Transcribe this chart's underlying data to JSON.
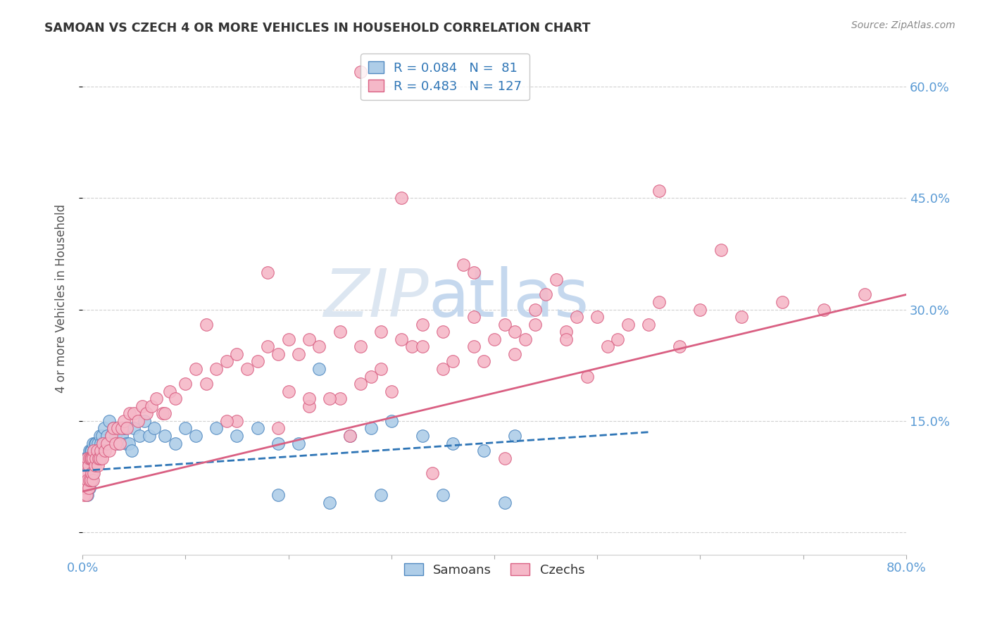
{
  "title": "SAMOAN VS CZECH 4 OR MORE VEHICLES IN HOUSEHOLD CORRELATION CHART",
  "source": "Source: ZipAtlas.com",
  "ylabel": "4 or more Vehicles in Household",
  "xlabel": "",
  "xlim": [
    0.0,
    0.8
  ],
  "ylim": [
    -0.03,
    0.66
  ],
  "xticks": [
    0.0,
    0.1,
    0.2,
    0.3,
    0.4,
    0.5,
    0.6,
    0.7,
    0.8
  ],
  "xticklabels": [
    "0.0%",
    "",
    "",
    "",
    "",
    "",
    "",
    "",
    "80.0%"
  ],
  "yticks": [
    0.0,
    0.15,
    0.3,
    0.45,
    0.6
  ],
  "yticklabels": [
    "",
    "15.0%",
    "30.0%",
    "45.0%",
    "60.0%"
  ],
  "right_ytick_color": "#5b9bd5",
  "grid_color": "#d0d0d0",
  "background_color": "#ffffff",
  "watermark_zip": "ZIP",
  "watermark_atlas": "atlas",
  "watermark_color_zip": "#dce6f1",
  "watermark_color_atlas": "#c5d8ee",
  "samoans": {
    "color": "#aecde8",
    "edge_color": "#4f88c0",
    "R": 0.084,
    "N": 81,
    "line_color": "#2e75b6",
    "line_style": "--",
    "label": "Samoans"
  },
  "czechs": {
    "color": "#f5b8c8",
    "edge_color": "#d95f82",
    "R": 0.483,
    "N": 127,
    "line_color": "#d95f82",
    "line_style": "-",
    "label": "Czechs"
  },
  "legend": {
    "text_color": "#2e75b6",
    "border_color": "#bbbbbb"
  },
  "samoan_line": [
    0.0,
    0.55,
    0.083,
    0.135
  ],
  "czech_line": [
    0.0,
    0.8,
    0.055,
    0.32
  ],
  "samoan_points_x": [
    0.001,
    0.002,
    0.002,
    0.003,
    0.003,
    0.004,
    0.004,
    0.004,
    0.005,
    0.005,
    0.005,
    0.006,
    0.006,
    0.006,
    0.007,
    0.007,
    0.007,
    0.007,
    0.008,
    0.008,
    0.008,
    0.009,
    0.009,
    0.009,
    0.01,
    0.01,
    0.01,
    0.011,
    0.011,
    0.012,
    0.012,
    0.013,
    0.013,
    0.014,
    0.015,
    0.015,
    0.016,
    0.017,
    0.018,
    0.019,
    0.02,
    0.021,
    0.022,
    0.024,
    0.026,
    0.028,
    0.03,
    0.032,
    0.035,
    0.038,
    0.04,
    0.042,
    0.045,
    0.048,
    0.05,
    0.055,
    0.06,
    0.065,
    0.07,
    0.08,
    0.09,
    0.1,
    0.11,
    0.13,
    0.15,
    0.17,
    0.19,
    0.21,
    0.23,
    0.26,
    0.28,
    0.3,
    0.33,
    0.36,
    0.39,
    0.42,
    0.19,
    0.24,
    0.29,
    0.35,
    0.41
  ],
  "samoan_points_y": [
    0.07,
    0.07,
    0.09,
    0.08,
    0.1,
    0.06,
    0.08,
    0.1,
    0.05,
    0.07,
    0.09,
    0.06,
    0.08,
    0.1,
    0.06,
    0.08,
    0.09,
    0.11,
    0.07,
    0.09,
    0.11,
    0.07,
    0.09,
    0.11,
    0.08,
    0.1,
    0.12,
    0.09,
    0.11,
    0.1,
    0.12,
    0.1,
    0.12,
    0.11,
    0.1,
    0.12,
    0.11,
    0.13,
    0.12,
    0.13,
    0.12,
    0.14,
    0.12,
    0.13,
    0.15,
    0.13,
    0.14,
    0.13,
    0.12,
    0.13,
    0.14,
    0.12,
    0.12,
    0.11,
    0.14,
    0.13,
    0.15,
    0.13,
    0.14,
    0.13,
    0.12,
    0.14,
    0.13,
    0.14,
    0.13,
    0.14,
    0.12,
    0.12,
    0.22,
    0.13,
    0.14,
    0.15,
    0.13,
    0.12,
    0.11,
    0.13,
    0.05,
    0.04,
    0.05,
    0.05,
    0.04
  ],
  "czech_points_x": [
    0.001,
    0.002,
    0.002,
    0.003,
    0.003,
    0.004,
    0.004,
    0.005,
    0.005,
    0.006,
    0.006,
    0.007,
    0.007,
    0.008,
    0.008,
    0.009,
    0.009,
    0.01,
    0.01,
    0.011,
    0.011,
    0.012,
    0.013,
    0.014,
    0.015,
    0.016,
    0.017,
    0.018,
    0.019,
    0.02,
    0.022,
    0.024,
    0.026,
    0.028,
    0.03,
    0.032,
    0.034,
    0.036,
    0.038,
    0.04,
    0.043,
    0.046,
    0.05,
    0.054,
    0.058,
    0.062,
    0.067,
    0.072,
    0.078,
    0.085,
    0.09,
    0.1,
    0.11,
    0.12,
    0.13,
    0.14,
    0.15,
    0.16,
    0.17,
    0.18,
    0.19,
    0.2,
    0.21,
    0.22,
    0.23,
    0.25,
    0.27,
    0.29,
    0.31,
    0.33,
    0.35,
    0.38,
    0.41,
    0.44,
    0.47,
    0.5,
    0.53,
    0.56,
    0.6,
    0.64,
    0.68,
    0.72,
    0.76,
    0.3,
    0.38,
    0.25,
    0.18,
    0.12,
    0.08,
    0.28,
    0.35,
    0.42,
    0.47,
    0.32,
    0.22,
    0.15,
    0.4,
    0.33,
    0.27,
    0.2,
    0.14,
    0.55,
    0.48,
    0.58,
    0.45,
    0.52,
    0.38,
    0.62,
    0.44,
    0.36,
    0.29,
    0.24,
    0.19,
    0.42,
    0.37,
    0.31,
    0.26,
    0.49,
    0.43,
    0.56,
    0.34,
    0.27,
    0.41,
    0.51,
    0.46,
    0.39,
    0.22
  ],
  "czech_points_y": [
    0.05,
    0.06,
    0.08,
    0.06,
    0.09,
    0.05,
    0.08,
    0.07,
    0.1,
    0.06,
    0.09,
    0.07,
    0.1,
    0.07,
    0.1,
    0.08,
    0.1,
    0.07,
    0.1,
    0.08,
    0.11,
    0.09,
    0.1,
    0.11,
    0.09,
    0.1,
    0.1,
    0.11,
    0.1,
    0.12,
    0.11,
    0.12,
    0.11,
    0.13,
    0.14,
    0.12,
    0.14,
    0.12,
    0.14,
    0.15,
    0.14,
    0.16,
    0.16,
    0.15,
    0.17,
    0.16,
    0.17,
    0.18,
    0.16,
    0.19,
    0.18,
    0.2,
    0.22,
    0.2,
    0.22,
    0.23,
    0.24,
    0.22,
    0.23,
    0.25,
    0.24,
    0.26,
    0.24,
    0.26,
    0.25,
    0.27,
    0.25,
    0.27,
    0.26,
    0.28,
    0.27,
    0.29,
    0.28,
    0.3,
    0.27,
    0.29,
    0.28,
    0.31,
    0.3,
    0.29,
    0.31,
    0.3,
    0.32,
    0.19,
    0.25,
    0.18,
    0.35,
    0.28,
    0.16,
    0.21,
    0.22,
    0.24,
    0.26,
    0.25,
    0.17,
    0.15,
    0.26,
    0.25,
    0.2,
    0.19,
    0.15,
    0.28,
    0.29,
    0.25,
    0.32,
    0.26,
    0.35,
    0.38,
    0.28,
    0.23,
    0.22,
    0.18,
    0.14,
    0.27,
    0.36,
    0.45,
    0.13,
    0.21,
    0.26,
    0.46,
    0.08,
    0.62,
    0.1,
    0.25,
    0.34,
    0.23,
    0.18
  ]
}
